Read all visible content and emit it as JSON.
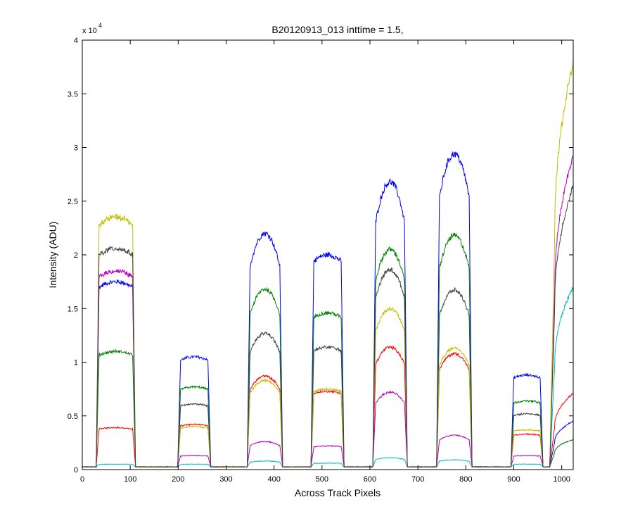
{
  "chart_data": {
    "type": "line",
    "title": "B20120913_013 inttime = 1.5,",
    "xlabel": "Across Track Pixels",
    "ylabel": "Intensity (ADU)",
    "y_multiplier_label": "x 10",
    "y_multiplier_exponent": "4",
    "xlim": [
      0,
      1024
    ],
    "ylim": [
      0,
      40000
    ],
    "x_ticks": [
      0,
      100,
      200,
      300,
      400,
      500,
      600,
      700,
      800,
      900,
      1000
    ],
    "x_tick_labels": [
      "0",
      "100",
      "200",
      "300",
      "400",
      "500",
      "600",
      "700",
      "800",
      "900",
      "1000"
    ],
    "y_ticks": [
      0,
      5000,
      10000,
      15000,
      20000,
      25000,
      30000,
      35000,
      40000
    ],
    "y_tick_labels": [
      "0",
      "0.5",
      "1",
      "1.5",
      "2",
      "2.5",
      "3",
      "3.5",
      "4"
    ],
    "grid": false,
    "legend": "none",
    "baseline": 250,
    "blocks": [
      {
        "start": 35,
        "end": 105,
        "rise": 6,
        "shape": "flat"
      },
      {
        "start": 205,
        "end": 262,
        "rise": 6,
        "shape": "flat"
      },
      {
        "start": 350,
        "end": 412,
        "rise": 6,
        "shape": "dome"
      },
      {
        "start": 483,
        "end": 540,
        "rise": 6,
        "shape": "flat"
      },
      {
        "start": 612,
        "end": 672,
        "rise": 6,
        "shape": "dome"
      },
      {
        "start": 745,
        "end": 807,
        "rise": 6,
        "shape": "dome"
      },
      {
        "start": 900,
        "end": 955,
        "rise": 6,
        "shape": "flat"
      },
      {
        "start": 985,
        "end": 1024,
        "rise": 10,
        "shape": "ramp"
      }
    ],
    "series": [
      {
        "color": "#0000ff",
        "peaks": [
          17500,
          10500,
          22000,
          20000,
          26800,
          29400,
          8800,
          4500
        ]
      },
      {
        "color": "#008000",
        "peaks": [
          11000,
          7700,
          16800,
          14600,
          20500,
          21800,
          6400,
          2800
        ]
      },
      {
        "color": "#ff0000",
        "peaks": [
          3900,
          4200,
          8700,
          7300,
          11400,
          10800,
          3300,
          7100
        ]
      },
      {
        "color": "#00bfbf",
        "peaks": [
          500,
          500,
          800,
          600,
          1100,
          900,
          500,
          17000
        ]
      },
      {
        "color": "#bf00bf",
        "peaks": [
          18500,
          1300,
          2600,
          2200,
          7200,
          3200,
          1300,
          29300
        ]
      },
      {
        "color": "#bfbf00",
        "peaks": [
          23500,
          4000,
          8300,
          7500,
          15000,
          11300,
          3700,
          38000
        ]
      },
      {
        "color": "#404040",
        "peaks": [
          20600,
          6100,
          12700,
          11400,
          18600,
          16700,
          5200,
          26500
        ]
      }
    ],
    "noise_amplitude": 0.012
  }
}
